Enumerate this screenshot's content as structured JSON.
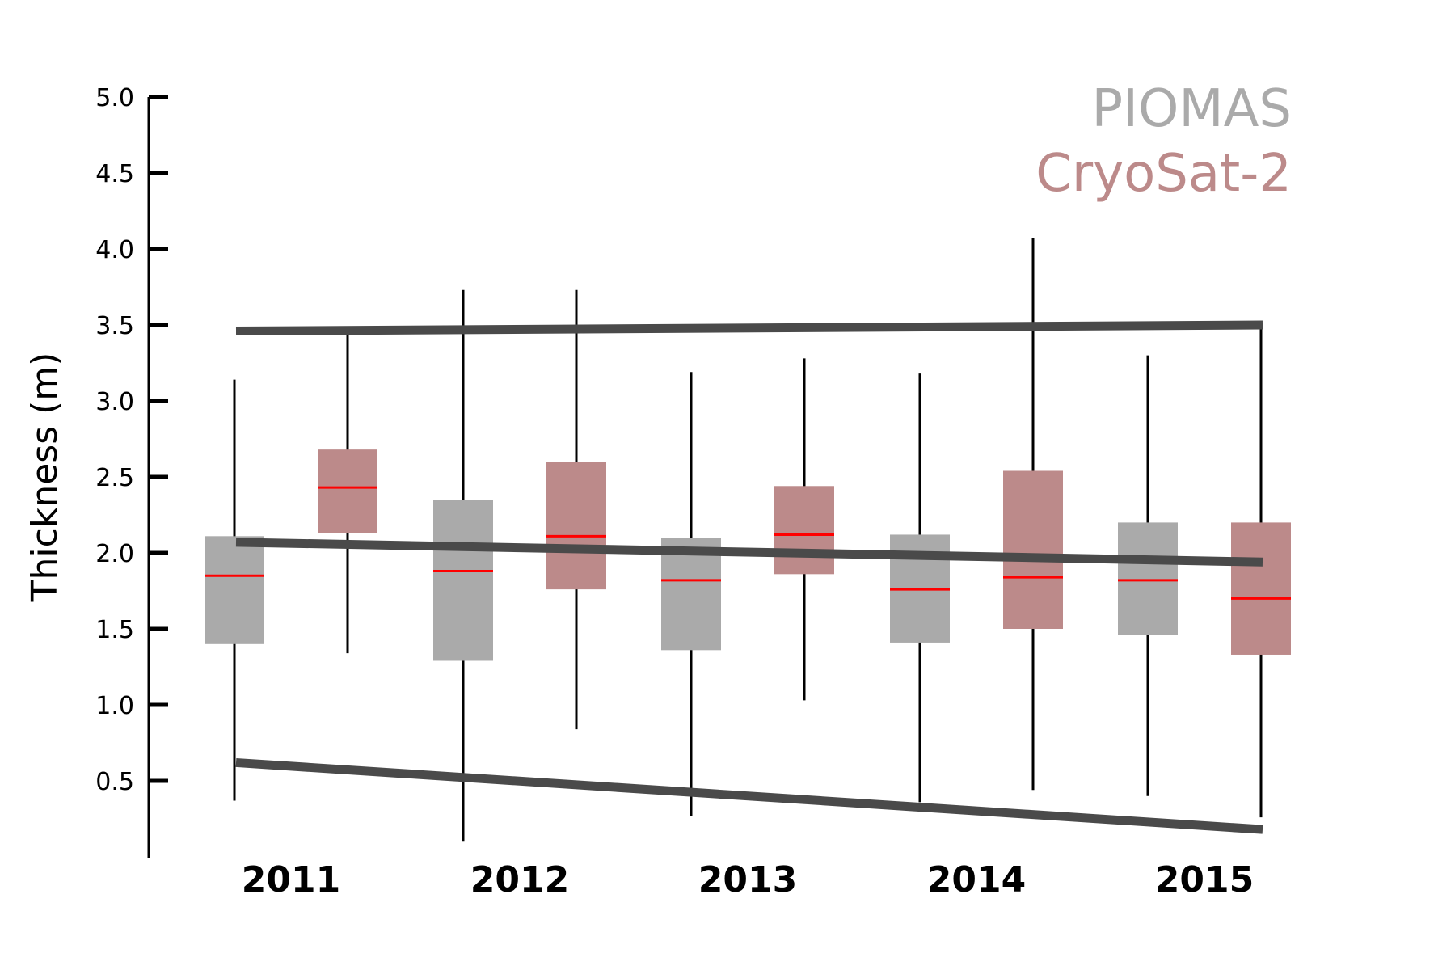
{
  "chart_data": {
    "type": "box",
    "title": "",
    "xlabel": "",
    "ylabel": "Thickness (m)",
    "ylim": [
      0,
      5.0
    ],
    "yticks": [
      "0.5",
      "1.0",
      "1.5",
      "2.0",
      "2.5",
      "3.0",
      "3.5",
      "4.0",
      "4.5",
      "5.0"
    ],
    "categories": [
      "2011",
      "2012",
      "2013",
      "2014",
      "2015"
    ],
    "legend": {
      "position": "top-right"
    },
    "series": [
      {
        "name": "PIOMAS",
        "color": "#aaaaaa",
        "boxes": [
          {
            "min": 0.37,
            "q1": 1.4,
            "median": 1.85,
            "q3": 2.11,
            "max": 3.14
          },
          {
            "min": 0.1,
            "q1": 1.29,
            "median": 1.88,
            "q3": 2.35,
            "max": 3.73
          },
          {
            "min": 0.27,
            "q1": 1.36,
            "median": 1.82,
            "q3": 2.1,
            "max": 3.19
          },
          {
            "min": 0.36,
            "q1": 1.41,
            "median": 1.76,
            "q3": 2.12,
            "max": 3.18
          },
          {
            "min": 0.4,
            "q1": 1.46,
            "median": 1.82,
            "q3": 2.2,
            "max": 3.3
          }
        ]
      },
      {
        "name": "CryoSat-2",
        "color": "#bc8a8a",
        "boxes": [
          {
            "min": 1.34,
            "q1": 2.13,
            "median": 2.43,
            "q3": 2.68,
            "max": 3.48
          },
          {
            "min": 0.84,
            "q1": 1.76,
            "median": 2.11,
            "q3": 2.6,
            "max": 3.73
          },
          {
            "min": 1.03,
            "q1": 1.86,
            "median": 2.12,
            "q3": 2.44,
            "max": 3.28
          },
          {
            "min": 0.44,
            "q1": 1.5,
            "median": 1.84,
            "q3": 2.54,
            "max": 4.07
          },
          {
            "min": 0.26,
            "q1": 1.33,
            "median": 1.7,
            "q3": 2.2,
            "max": 3.48
          }
        ]
      }
    ],
    "trend_lines": [
      {
        "start": [
          "2011",
          3.46
        ],
        "end": [
          "2015",
          3.5
        ]
      },
      {
        "start": [
          "2011",
          2.07
        ],
        "end": [
          "2015",
          1.94
        ]
      },
      {
        "start": [
          "2011",
          0.62
        ],
        "end": [
          "2015",
          0.18
        ]
      }
    ],
    "median_color": "#ff0000",
    "trend_color": "#4a4a4a"
  }
}
